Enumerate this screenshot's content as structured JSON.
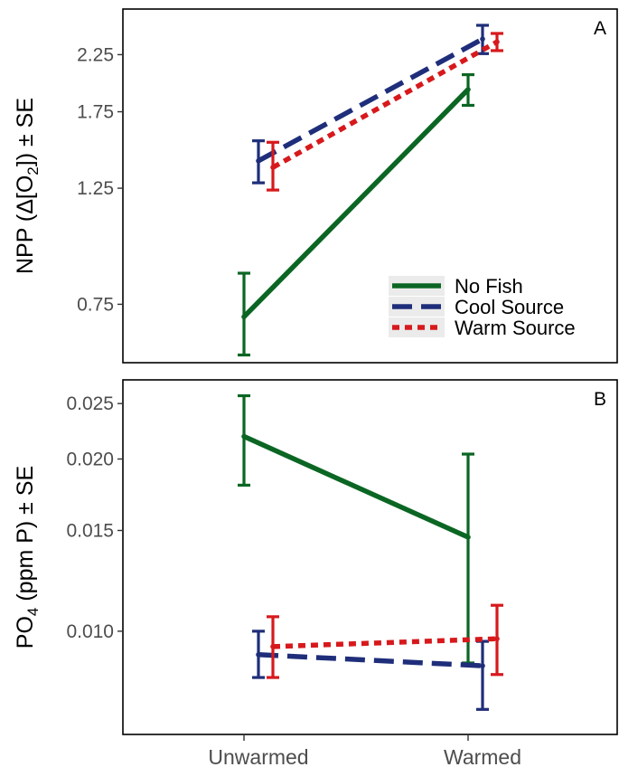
{
  "chart_data": [
    {
      "type": "line",
      "panel_label": "A",
      "ylabel_parts": [
        "NPP (Δ[O",
        "2",
        "]) ± SE"
      ],
      "y_scale": "log",
      "ylim": [
        0.58,
        2.75
      ],
      "yticks": [
        0.75,
        1.25,
        1.75,
        2.25
      ],
      "ytick_labels": [
        "0.75",
        "1.25",
        "1.75",
        "2.25"
      ],
      "categories": [
        "Unwarmed",
        "Warmed"
      ],
      "legend_position": "bottom-right",
      "series": [
        {
          "name": "No Fish",
          "color": "#0b6623",
          "dash": "solid",
          "values": [
            0.71,
            1.93
          ],
          "lower": [
            0.6,
            1.8
          ],
          "upper": [
            0.86,
            2.06
          ]
        },
        {
          "name": "Cool Source",
          "color": "#1f2e7a",
          "dash": "dashed",
          "values": [
            1.41,
            2.41
          ],
          "lower": [
            1.28,
            2.26
          ],
          "upper": [
            1.54,
            2.56
          ]
        },
        {
          "name": "Warm Source",
          "color": "#d7191c",
          "dash": "dotted",
          "values": [
            1.37,
            2.38
          ],
          "lower": [
            1.24,
            2.29
          ],
          "upper": [
            1.53,
            2.47
          ]
        }
      ]
    },
    {
      "type": "line",
      "panel_label": "B",
      "ylabel_parts": [
        "PO",
        "4",
        " (ppm P) ± SE"
      ],
      "y_scale": "log",
      "ylim": [
        0.0066,
        0.0275
      ],
      "yticks": [
        0.01,
        0.015,
        0.02,
        0.025
      ],
      "ytick_labels": [
        "0.010",
        "0.015",
        "0.020",
        "0.025"
      ],
      "categories": [
        "Unwarmed",
        "Warmed"
      ],
      "series": [
        {
          "name": "No Fish",
          "color": "#0b6623",
          "dash": "solid",
          "values": [
            0.0219,
            0.0146
          ],
          "lower": [
            0.018,
            0.0088
          ],
          "upper": [
            0.0258,
            0.0204
          ]
        },
        {
          "name": "Cool Source",
          "color": "#1f2e7a",
          "dash": "dashed",
          "values": [
            0.0091,
            0.0087
          ],
          "lower": [
            0.0083,
            0.0073
          ],
          "upper": [
            0.01,
            0.0096
          ]
        },
        {
          "name": "Warm Source",
          "color": "#d7191c",
          "dash": "dotted",
          "values": [
            0.0094,
            0.0097
          ],
          "lower": [
            0.0083,
            0.0084
          ],
          "upper": [
            0.0106,
            0.0111
          ]
        }
      ]
    }
  ]
}
